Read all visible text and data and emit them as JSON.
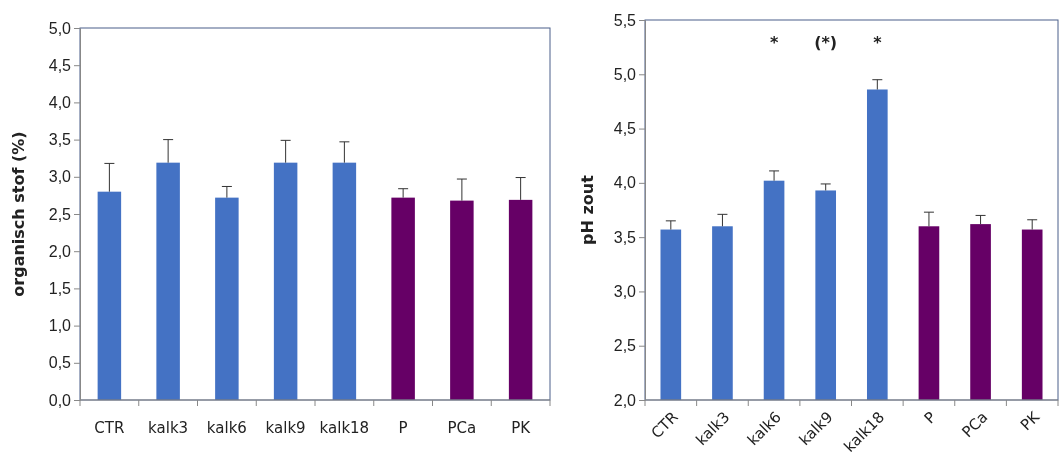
{
  "chart_data": [
    {
      "type": "bar",
      "ylabel": "organisch stof (%)",
      "categories": [
        "CTR",
        "kalk3",
        "kalk6",
        "kalk9",
        "kalk18",
        "P",
        "PCa",
        "PK"
      ],
      "values": [
        2.8,
        3.19,
        2.72,
        3.19,
        3.19,
        2.72,
        2.68,
        2.69
      ],
      "errors": [
        [
          2.8,
          3.18
        ],
        [
          3.19,
          3.5
        ],
        [
          2.72,
          2.87
        ],
        [
          3.19,
          3.49
        ],
        [
          3.19,
          3.47
        ],
        [
          2.72,
          2.84
        ],
        [
          2.68,
          2.97
        ],
        [
          2.69,
          2.99
        ]
      ],
      "colors": [
        "#4472c4",
        "#4472c4",
        "#4472c4",
        "#4472c4",
        "#4472c4",
        "#660066",
        "#660066",
        "#660066"
      ],
      "ylim": [
        0,
        5
      ],
      "yticks": [
        {
          "value": 0,
          "label": "0,0"
        },
        {
          "value": 0.5,
          "label": "0,5"
        },
        {
          "value": 1,
          "label": "1,0"
        },
        {
          "value": 1.5,
          "label": "1,5"
        },
        {
          "value": 2,
          "label": "2,0"
        },
        {
          "value": 2.5,
          "label": "2,5"
        },
        {
          "value": 3,
          "label": "3,0"
        },
        {
          "value": 3.5,
          "label": "3,5"
        },
        {
          "value": 4,
          "label": "4,0"
        },
        {
          "value": 4.5,
          "label": "4,5"
        },
        {
          "value": 5,
          "label": "5,0"
        }
      ],
      "grid": false
    },
    {
      "type": "bar",
      "ylabel": "pH zout",
      "categories": [
        "CTR",
        "kalk3",
        "kalk6",
        "kalk9",
        "kalk18",
        "P",
        "PCa",
        "PK"
      ],
      "values": [
        3.57,
        3.6,
        4.02,
        3.93,
        4.86,
        3.6,
        3.62,
        3.57
      ],
      "errors": [
        [
          3.57,
          3.65
        ],
        [
          3.6,
          3.71
        ],
        [
          4.02,
          4.11
        ],
        [
          3.93,
          3.99
        ],
        [
          4.86,
          4.95
        ],
        [
          3.6,
          3.73
        ],
        [
          3.62,
          3.7
        ],
        [
          3.57,
          3.66
        ]
      ],
      "colors": [
        "#4472c4",
        "#4472c4",
        "#4472c4",
        "#4472c4",
        "#4472c4",
        "#660066",
        "#660066",
        "#660066"
      ],
      "ylim": [
        2,
        5.5
      ],
      "yticks": [
        {
          "value": 2,
          "label": "2,0"
        },
        {
          "value": 2.5,
          "label": "2,5"
        },
        {
          "value": 3,
          "label": "3,0"
        },
        {
          "value": 3.5,
          "label": "3,5"
        },
        {
          "value": 4,
          "label": "4,0"
        },
        {
          "value": 4.5,
          "label": "4,5"
        },
        {
          "value": 5,
          "label": "5,0"
        },
        {
          "value": 5.5,
          "label": "5,5"
        }
      ],
      "annotations": [
        "*",
        "(*)",
        "*"
      ],
      "grid": false
    }
  ]
}
